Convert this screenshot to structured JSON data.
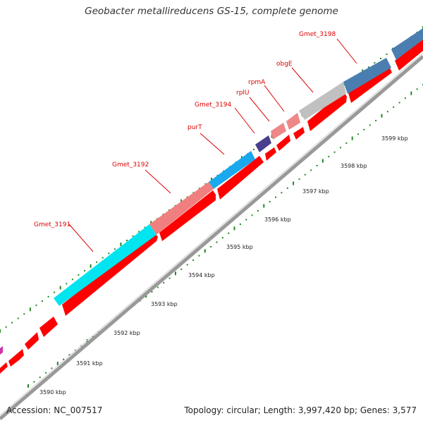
{
  "title": "Geobacter metallireducens GS-15, complete genome",
  "accession": "Accession: NC_007517",
  "summary": "Topology: circular; Length: 3,997,420 bp; Genes: 3,577",
  "colors": {
    "forward_cds": "#ff0000",
    "backbone": "#999999",
    "dots": "#228822",
    "gene_label": "#dd0000"
  },
  "gene_labels": [
    "Gmet_3191",
    "Gmet_3192",
    "purT",
    "Gmet_3194",
    "rplU",
    "rpmA",
    "obgE",
    "Gmet_3198"
  ],
  "scale_labels": [
    "3590 kbp",
    "3591 kbp",
    "3592 kbp",
    "3593 kbp",
    "3594 kbp",
    "3595 kbp",
    "3596 kbp",
    "3597 kbp",
    "3598 kbp",
    "3599 kbp"
  ]
}
